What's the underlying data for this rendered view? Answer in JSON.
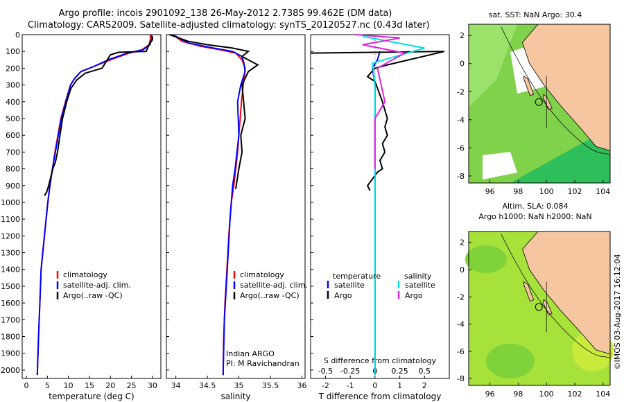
{
  "header": {
    "title_line1": "Argo profile: incois 2901092_138 26-May-2012 2.738S 99.462E (DM data)",
    "title_line2": "Climatology: CARS2009. Satellite-adjusted climatology: synTS_20120527.nc (0.43d later)"
  },
  "footer": {
    "credit": "©IMOS 03-Aug-2017 16:12:04"
  },
  "colors": {
    "climatology": "#ff0000",
    "satellite": "#0000ff",
    "argo": "#000000",
    "salinity_satellite": "#00e0e0",
    "salinity_argo": "#e020e0",
    "land": "#f5c6a0",
    "ocean_sst": "#7fd24a",
    "ocean_sla": "#a6e23a"
  },
  "chart_data": [
    {
      "type": "line",
      "panel": "temperature",
      "xlabel": "temperature (deg C)",
      "ylabel": "",
      "xlim": [
        -1,
        32
      ],
      "ylim": [
        2050,
        0
      ],
      "xticks": [
        0,
        5,
        10,
        15,
        20,
        25,
        30
      ],
      "yticks": [
        0,
        100,
        200,
        300,
        400,
        500,
        600,
        700,
        800,
        900,
        1000,
        1100,
        1200,
        1300,
        1400,
        1500,
        1600,
        1700,
        1800,
        1900,
        2000
      ],
      "legend": [
        "climatology",
        "satellite-adj. clim.",
        "Argo(..raw -QC)"
      ],
      "series": [
        {
          "name": "climatology",
          "color": "#ff0000",
          "x": [
            29.5,
            29.5,
            29.2,
            27.5,
            24.5,
            20,
            16,
            13,
            11.5,
            10.5,
            9.3,
            8.2,
            7.5,
            6.8,
            6.2,
            5.6,
            5.1,
            4.7,
            4.3,
            3.9,
            3.5,
            3.2,
            2.9,
            2.7,
            2.6
          ],
          "y": [
            0,
            30,
            60,
            90,
            110,
            150,
            190,
            220,
            260,
            300,
            400,
            500,
            600,
            700,
            800,
            900,
            1000,
            1100,
            1200,
            1300,
            1400,
            1600,
            1800,
            1950,
            2030
          ]
        },
        {
          "name": "satellite-adj. clim.",
          "color": "#0000ff",
          "x": [
            29.8,
            29.8,
            29.4,
            27.8,
            24,
            19.5,
            16,
            13,
            11.5,
            10.5,
            9.4,
            8.3,
            7.6,
            6.9,
            6.2,
            5.6,
            5.1,
            4.7,
            4.3,
            3.9,
            3.5,
            3.2,
            2.9,
            2.7,
            2.6
          ],
          "y": [
            0,
            30,
            60,
            90,
            110,
            150,
            190,
            220,
            260,
            300,
            400,
            500,
            600,
            700,
            800,
            900,
            1000,
            1100,
            1200,
            1300,
            1400,
            1600,
            1800,
            1950,
            2030
          ]
        },
        {
          "name": "Argo(..raw -QC)",
          "color": "#000000",
          "x": [
            30,
            30,
            29.3,
            28.5,
            22,
            20,
            18,
            14,
            12,
            10.6,
            9.6,
            8.6,
            8,
            7.4,
            6.9,
            6.3,
            5.8,
            5.3,
            4.8,
            4.3
          ],
          "y": [
            10,
            30,
            55,
            100,
            105,
            120,
            200,
            230,
            270,
            320,
            400,
            500,
            600,
            700,
            760,
            800,
            850,
            900,
            940,
            960
          ]
        }
      ]
    },
    {
      "type": "line",
      "panel": "salinity",
      "xlabel": "salinity",
      "ylabel": "",
      "xlim": [
        33.85,
        36.05
      ],
      "ylim": [
        2050,
        0
      ],
      "xticks": [
        34,
        34.5,
        35,
        35.5,
        36
      ],
      "legend": [
        "climatology",
        "satellite-adj. clim.",
        "Argo(..raw -QC)"
      ],
      "annotations": [
        "Indian ARGO",
        "PI: M Ravichandran"
      ],
      "series": [
        {
          "name": "climatology",
          "color": "#ff0000",
          "x": [
            33.95,
            34.1,
            34.4,
            34.7,
            34.95,
            35.05,
            35.1,
            35.07,
            35.04,
            35.02,
            35.0,
            34.98,
            34.95,
            34.92,
            34.88,
            34.84,
            34.81,
            34.78,
            34.76,
            34.75
          ],
          "y": [
            0,
            40,
            70,
            90,
            110,
            150,
            200,
            300,
            400,
            500,
            600,
            700,
            800,
            900,
            1000,
            1200,
            1400,
            1600,
            1800,
            2030
          ]
        },
        {
          "name": "satellite-adj. clim.",
          "color": "#0000ff",
          "x": [
            33.95,
            34.2,
            34.6,
            34.9,
            35.05,
            35.08,
            35.1,
            35.03,
            34.98,
            34.99,
            35.0,
            34.97,
            34.94,
            34.9,
            34.86,
            34.83,
            34.8,
            34.77,
            34.75
          ],
          "y": [
            0,
            50,
            80,
            100,
            130,
            170,
            220,
            300,
            400,
            500,
            600,
            700,
            800,
            900,
            1100,
            1300,
            1500,
            1700,
            2030
          ]
        },
        {
          "name": "Argo(..raw -QC)",
          "color": "#000000",
          "x": [
            33.9,
            34.2,
            34.5,
            34.9,
            35.15,
            35.05,
            35.3,
            35.15,
            35.05,
            35.1,
            35.03,
            35.05,
            35.0,
            34.95
          ],
          "y": [
            0,
            40,
            60,
            80,
            100,
            130,
            180,
            220,
            300,
            500,
            600,
            700,
            800,
            920
          ]
        }
      ]
    },
    {
      "type": "line",
      "panel": "difference",
      "xlabel": "T difference from climatology",
      "xlabel_top": "S difference from climatology",
      "xlim": [
        -2.6,
        3.0
      ],
      "ylim": [
        2050,
        0
      ],
      "xticks": [
        -2,
        -1,
        0,
        1,
        2
      ],
      "xticks_S": [
        -0.5,
        -0.25,
        0,
        0.25,
        0.5
      ],
      "legend_temperature_title": "temperature",
      "legend_salinity_title": "salinity",
      "legend": [
        "satellite",
        "Argo",
        "satellite",
        "Argo"
      ],
      "series": [
        {
          "name": "satellite",
          "group": "temperature",
          "color": "#0000ff",
          "x": [
            0.2,
            0.1,
            -0.1,
            0.0,
            0.0,
            0.0,
            0.0,
            0.0,
            0.0,
            0.0
          ],
          "y": [
            100,
            150,
            200,
            300,
            500,
            800,
            1200,
            1500,
            1800,
            2030
          ]
        },
        {
          "name": "Argo",
          "group": "temperature",
          "color": "#000000",
          "x": [
            -2.6,
            2.8,
            0.5,
            0.0,
            -0.3,
            0.0,
            0.3,
            0.4,
            0.5,
            0.4,
            0.5,
            0.3,
            0.4,
            0.2,
            0.3,
            0.1,
            -0.3,
            -0.2
          ],
          "y": [
            110,
            100,
            180,
            200,
            250,
            280,
            400,
            450,
            500,
            550,
            600,
            650,
            700,
            750,
            800,
            820,
            900,
            930
          ]
        },
        {
          "name": "satellite",
          "group": "salinity",
          "color": "#00e0e0",
          "x": [
            -0.5,
            2.0,
            -0.1,
            0.0,
            0.0,
            0.0,
            0.0,
            0.0,
            0.0,
            0.0
          ],
          "y": [
            10,
            80,
            170,
            300,
            500,
            800,
            1200,
            1500,
            1800,
            2030
          ]
        },
        {
          "name": "Argo",
          "group": "salinity",
          "color": "#e020e0",
          "x": [
            -0.8,
            1.0,
            -0.5,
            1.2,
            0.1,
            0.4,
            0.0,
            0.0,
            0.0
          ],
          "y": [
            0,
            20,
            60,
            110,
            200,
            400,
            500,
            600,
            800
          ]
        }
      ]
    },
    {
      "type": "heatmap",
      "panel": "sst-map",
      "title": "sat. SST: NaN Argo: 30.4",
      "xlim": [
        94.5,
        104.5
      ],
      "ylim": [
        -8.5,
        2.8
      ],
      "xticks": [
        96,
        98,
        100,
        102,
        104
      ],
      "yticks": [
        -8,
        -6,
        -4,
        -2,
        0,
        2
      ],
      "marker": {
        "lon": 99.462,
        "lat": -2.738
      }
    },
    {
      "type": "heatmap",
      "panel": "sla-map",
      "title": "Altim. SLA: 0.084",
      "subtitle": "Argo h1000: NaN h2000: NaN",
      "xlim": [
        94.5,
        104.5
      ],
      "ylim": [
        -8.5,
        2.8
      ],
      "xticks": [
        96,
        98,
        100,
        102,
        104
      ],
      "yticks": [
        -8,
        -6,
        -4,
        -2,
        0,
        2
      ],
      "marker": {
        "lon": 99.462,
        "lat": -2.738
      }
    }
  ]
}
